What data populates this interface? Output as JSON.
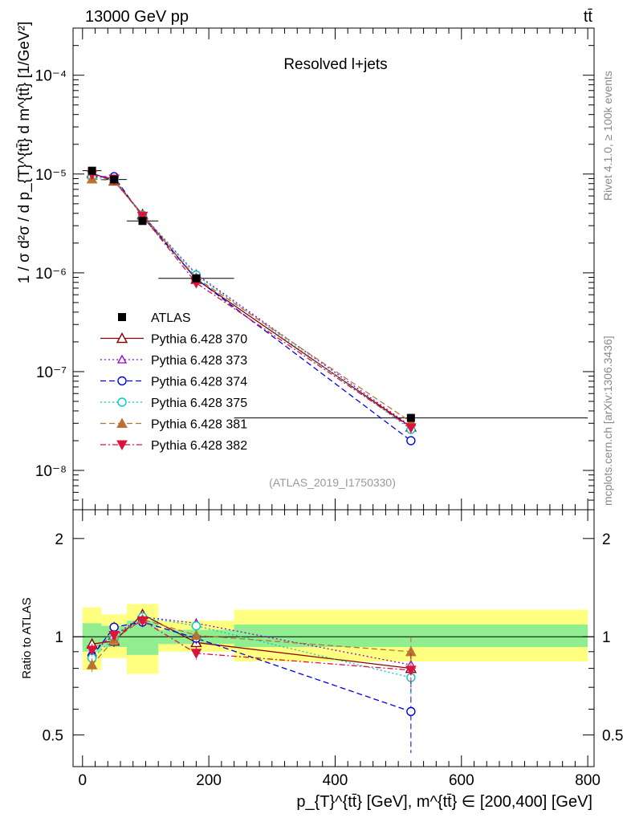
{
  "header": {
    "left": "13000 GeV pp",
    "right": "tt̄"
  },
  "side_labels": {
    "rivet": "Rivet 4.1.0, ≥ 100k events",
    "mcplots": "mcplots.cern.ch [arXiv:1306.3436]"
  },
  "chart_data": [
    {
      "type": "line",
      "title": "Resolved l+jets",
      "analysis_tag": "(ATLAS_2019_I1750330)",
      "ylabel": "1 / σ d²σ / d p_{T}^{tt̄} d m^{tt̄} [1/GeV²]",
      "yscale": "log",
      "ylim": [
        4e-09,
        0.0003
      ],
      "xlim": [
        -15,
        810
      ],
      "y_tick_labels": [
        "10⁻⁸",
        "10⁻⁷",
        "10⁻⁶",
        "10⁻⁵",
        "10⁻⁴"
      ],
      "x": [
        15,
        50,
        95,
        180,
        520
      ],
      "data": {
        "name": "ATLAS",
        "values": [
          1.08e-05,
          8.8e-06,
          3.35e-06,
          8.8e-07,
          3.4e-08
        ],
        "bins": [
          [
            0,
            30
          ],
          [
            30,
            70
          ],
          [
            70,
            120
          ],
          [
            120,
            240
          ],
          [
            240,
            800
          ]
        ]
      },
      "series": [
        {
          "name": "Pythia 6.428 370",
          "color": "#8b0000",
          "values": [
            1.02e-05,
            8.5e-06,
            3.9e-06,
            8.6e-07,
            2.75e-08
          ]
        },
        {
          "name": "Pythia 6.428 373",
          "color": "#9400d3",
          "values": [
            9.7e-06,
            8.9e-06,
            3.85e-06,
            9.7e-07,
            2.8e-08
          ]
        },
        {
          "name": "Pythia 6.428 374",
          "color": "#0000e0",
          "values": [
            9.4e-06,
            9.4e-06,
            3.7e-06,
            8.7e-07,
            2e-08
          ]
        },
        {
          "name": "Pythia 6.428 375",
          "color": "#00c8c8",
          "values": [
            9.3e-06,
            8.7e-06,
            3.85e-06,
            9.5e-07,
            2.6e-08
          ]
        },
        {
          "name": "Pythia 6.428 381",
          "color": "#b87333",
          "values": [
            8.9e-06,
            8.6e-06,
            3.8e-06,
            8.9e-07,
            3.1e-08
          ]
        },
        {
          "name": "Pythia 6.428 382",
          "color": "#dc143c",
          "values": [
            9.9e-06,
            8.9e-06,
            3.75e-06,
            7.9e-07,
            2.7e-08
          ]
        }
      ]
    },
    {
      "type": "line",
      "ylabel": "Ratio to ATLAS",
      "xlabel": "p_{T}^{tt̄} [GeV], m^{tt̄} ∈ [200,400] [GeV]",
      "ylim": [
        0.4,
        2.45
      ],
      "y_ticks": [
        0.5,
        1,
        2
      ],
      "y_tick_labels": [
        "0.5",
        "1",
        "2"
      ],
      "xlim": [
        -15,
        810
      ],
      "x_ticks": [
        0,
        200,
        400,
        600,
        800
      ],
      "x_tick_labels": [
        "0",
        "200",
        "400",
        "600",
        "800"
      ],
      "x": [
        15,
        50,
        95,
        180,
        520
      ],
      "bands": [
        {
          "x0": 0,
          "x1": 30,
          "inner": [
            0.9,
            1.1
          ],
          "outer": [
            0.79,
            1.23
          ]
        },
        {
          "x0": 30,
          "x1": 70,
          "inner": [
            0.93,
            1.08
          ],
          "outer": [
            0.86,
            1.17
          ]
        },
        {
          "x0": 70,
          "x1": 120,
          "inner": [
            0.88,
            1.12
          ],
          "outer": [
            0.77,
            1.26
          ]
        },
        {
          "x0": 120,
          "x1": 240,
          "inner": [
            0.95,
            1.05
          ],
          "outer": [
            0.9,
            1.12
          ]
        },
        {
          "x0": 240,
          "x1": 800,
          "inner": [
            0.93,
            1.09
          ],
          "outer": [
            0.84,
            1.21
          ]
        }
      ],
      "series": [
        {
          "name": "Pythia 6.428 370",
          "color": "#8b0000",
          "values": [
            0.95,
            0.97,
            1.17,
            0.96,
            0.8
          ]
        },
        {
          "name": "Pythia 6.428 373",
          "color": "#9400d3",
          "values": [
            0.9,
            1.01,
            1.15,
            1.1,
            0.82
          ]
        },
        {
          "name": "Pythia 6.428 374",
          "color": "#0000e0",
          "values": [
            0.87,
            1.07,
            1.11,
            0.99,
            0.59
          ]
        },
        {
          "name": "Pythia 6.428 375",
          "color": "#00c8c8",
          "values": [
            0.86,
            0.99,
            1.15,
            1.08,
            0.75
          ]
        },
        {
          "name": "Pythia 6.428 381",
          "color": "#b87333",
          "values": [
            0.82,
            0.98,
            1.13,
            1.01,
            0.9
          ]
        },
        {
          "name": "Pythia 6.428 382",
          "color": "#dc143c",
          "values": [
            0.91,
            1.01,
            1.12,
            0.89,
            0.79
          ]
        }
      ]
    }
  ]
}
